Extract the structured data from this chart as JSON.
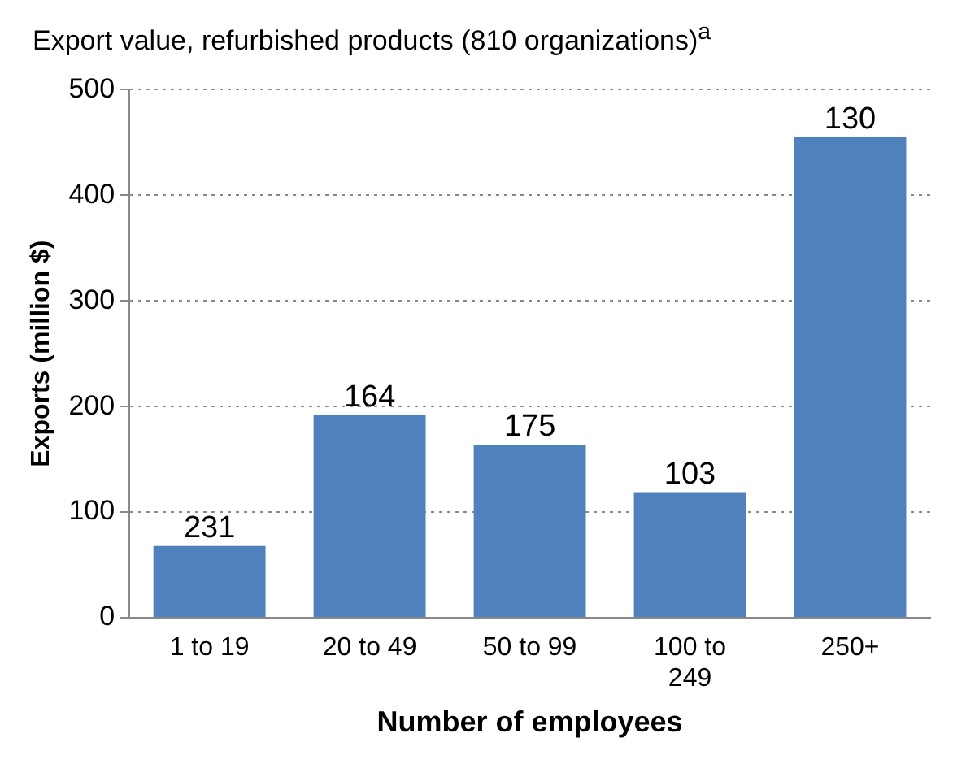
{
  "chart_data": {
    "type": "bar",
    "title": "Export value, refurbished products (810 organizations)$^{a}$",
    "xlabel": "Number of employees",
    "ylabel": "Exports (million $)",
    "categories": [
      "1 to 19",
      "20 to 49",
      "50 to 99",
      "100 to 249",
      "250+"
    ],
    "values": [
      68,
      192,
      164,
      119,
      455
    ],
    "color": "#4f81bd",
    "annotations": [
      {
        "text": "231",
        "x": "1 to 19",
        "y": 68
      },
      {
        "text": "164",
        "x": "20 to 49",
        "y": 192
      },
      {
        "text": "175",
        "x": "50 to 99",
        "y": 164
      },
      {
        "text": "103",
        "x": "100 to 249",
        "y": 119
      },
      {
        "text": "130",
        "x": "250+",
        "y": 455
      }
    ],
    "ylim": [
      0,
      500
    ],
    "yticks": [
      0,
      100,
      200,
      300,
      400,
      500
    ],
    "grid": "y",
    "legend": false
  }
}
